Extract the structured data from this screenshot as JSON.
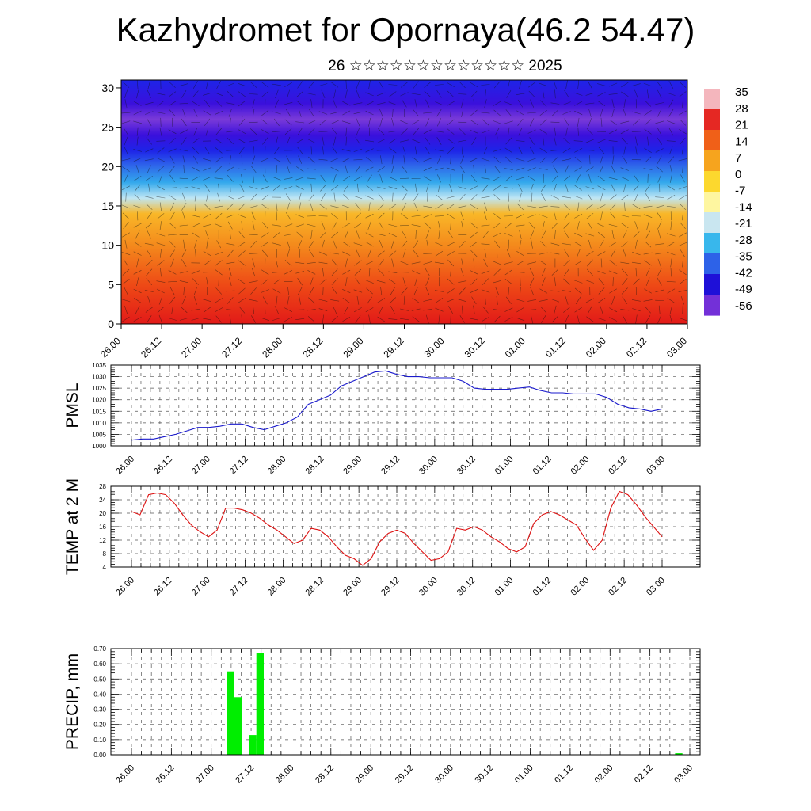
{
  "header": {
    "title": "Kazhydromet for Opornaya(46.2 54.47)",
    "subtitle": "26 ☆☆☆☆☆☆☆☆☆☆☆☆☆ 2025"
  },
  "chart_data": [
    {
      "type": "heatmap",
      "subtype": "vertical cross-section, temperature (color) with wind barbs",
      "xlabel": "",
      "ylabel": "",
      "x_ticks": [
        "26.00",
        "26.12",
        "27.00",
        "27.12",
        "28.00",
        "28.12",
        "29.00",
        "29.12",
        "30.00",
        "30.12",
        "01.00",
        "01.12",
        "02.00",
        "02.12",
        "03.00"
      ],
      "y_ticks": [
        0,
        5,
        10,
        15,
        20,
        25,
        30
      ],
      "ylim": [
        0,
        31
      ],
      "colorbar": {
        "labels": [
          "35",
          "28",
          "21",
          "14",
          "7",
          "0",
          "-7",
          "-14",
          "-21",
          "-28",
          "-35",
          "-42",
          "-49",
          "-56"
        ],
        "range": [
          -60,
          38
        ],
        "colors": [
          "#f4b6bd",
          "#e52823",
          "#f06018",
          "#f6a41e",
          "#fcd82e",
          "#fef6a0",
          "#c9e6f0",
          "#38b7ec",
          "#2d62e8",
          "#1e10d8",
          "#7330d8"
        ]
      },
      "temperature_profile": {
        "levels": [
          0,
          5,
          10,
          14,
          16,
          18,
          20,
          22,
          24,
          26,
          28,
          31
        ],
        "values": [
          28,
          22,
          12,
          3,
          -14,
          -28,
          -40,
          -52,
          -58,
          -60,
          -56,
          -52
        ]
      }
    },
    {
      "type": "line",
      "ylabel": "PMSL",
      "ylim": [
        1000,
        1035
      ],
      "y_ticks": [
        "1000",
        "1005",
        "1010",
        "1015",
        "1020",
        "1025",
        "1030",
        "1035"
      ],
      "x_ticks": [
        "26.00",
        "26.12",
        "27.00",
        "27.12",
        "28.00",
        "28.12",
        "29.00",
        "29.12",
        "30.00",
        "30.12",
        "01.00",
        "01.12",
        "02.00",
        "02.12",
        "03.00"
      ],
      "line_color": "#1a1acc",
      "values": [
        1002.5,
        1003,
        1003,
        1004,
        1005,
        1006.5,
        1008,
        1008,
        1008.5,
        1009.5,
        1009.5,
        1008,
        1007,
        1008.5,
        1010,
        1012.5,
        1018,
        1020,
        1022,
        1026,
        1028,
        1030,
        1032,
        1032.5,
        1031,
        1030,
        1030,
        1029.5,
        1029.5,
        1029.5,
        1028,
        1025,
        1024.5,
        1024.5,
        1024.5,
        1025,
        1025.5,
        1024,
        1023,
        1023,
        1022.5,
        1022.5,
        1022.5,
        1021,
        1018,
        1016.5,
        1016,
        1015,
        1016
      ]
    },
    {
      "type": "line",
      "ylabel": "TEMP at 2 M",
      "ylim": [
        4,
        28
      ],
      "y_ticks": [
        "4",
        "8",
        "12",
        "16",
        "20",
        "24",
        "28"
      ],
      "x_ticks": [
        "26.00",
        "26.12",
        "27.00",
        "27.12",
        "28.00",
        "28.12",
        "29.00",
        "29.12",
        "30.00",
        "30.12",
        "01.00",
        "01.12",
        "02.00",
        "02.12",
        "03.00"
      ],
      "line_color": "#dd1111",
      "values": [
        20.5,
        19.5,
        25.5,
        26,
        25.5,
        23,
        19.5,
        16.5,
        14.5,
        13,
        15,
        21.5,
        21.5,
        21,
        20,
        18.5,
        16.5,
        15,
        13,
        11,
        12,
        15.5,
        15,
        13,
        10,
        7.5,
        6.5,
        4.5,
        6.5,
        11.5,
        14,
        15,
        14,
        11,
        8.5,
        6,
        6.5,
        8.5,
        15.5,
        15,
        16,
        15,
        13,
        11.5,
        9.5,
        8.5,
        10,
        17,
        19.5,
        20.5,
        19.5,
        18,
        16.5,
        12.5,
        9,
        12,
        21.5,
        26.5,
        25.5,
        22.5,
        19,
        16,
        13
      ]
    },
    {
      "type": "bar",
      "ylabel": "PRECIP, mm",
      "ylim": [
        0,
        0.7
      ],
      "y_ticks": [
        "0.00",
        "0.10",
        "0.20",
        "0.30",
        "0.40",
        "0.50",
        "0.60",
        "0.70"
      ],
      "x_ticks": [
        "26.00",
        "26.12",
        "27.00",
        "27.12",
        "28.00",
        "28.12",
        "29.00",
        "29.12",
        "30.00",
        "30.12",
        "01.00",
        "01.12",
        "02.00",
        "02.12",
        "03.00"
      ],
      "bar_color": "#00ee00",
      "values": [
        0,
        0,
        0,
        0,
        0,
        0,
        0,
        0,
        0,
        0,
        0,
        0,
        0,
        0.55,
        0.38,
        0,
        0.13,
        0.67,
        0,
        0,
        0,
        0,
        0,
        0,
        0,
        0,
        0,
        0,
        0,
        0,
        0,
        0,
        0,
        0,
        0,
        0,
        0,
        0,
        0,
        0,
        0,
        0,
        0,
        0,
        0,
        0,
        0,
        0,
        0,
        0,
        0,
        0,
        0,
        0,
        0,
        0,
        0,
        0,
        0,
        0,
        0,
        0,
        0,
        0,
        0,
        0,
        0,
        0,
        0,
        0,
        0,
        0,
        0,
        0,
        0.01,
        0
      ]
    }
  ]
}
